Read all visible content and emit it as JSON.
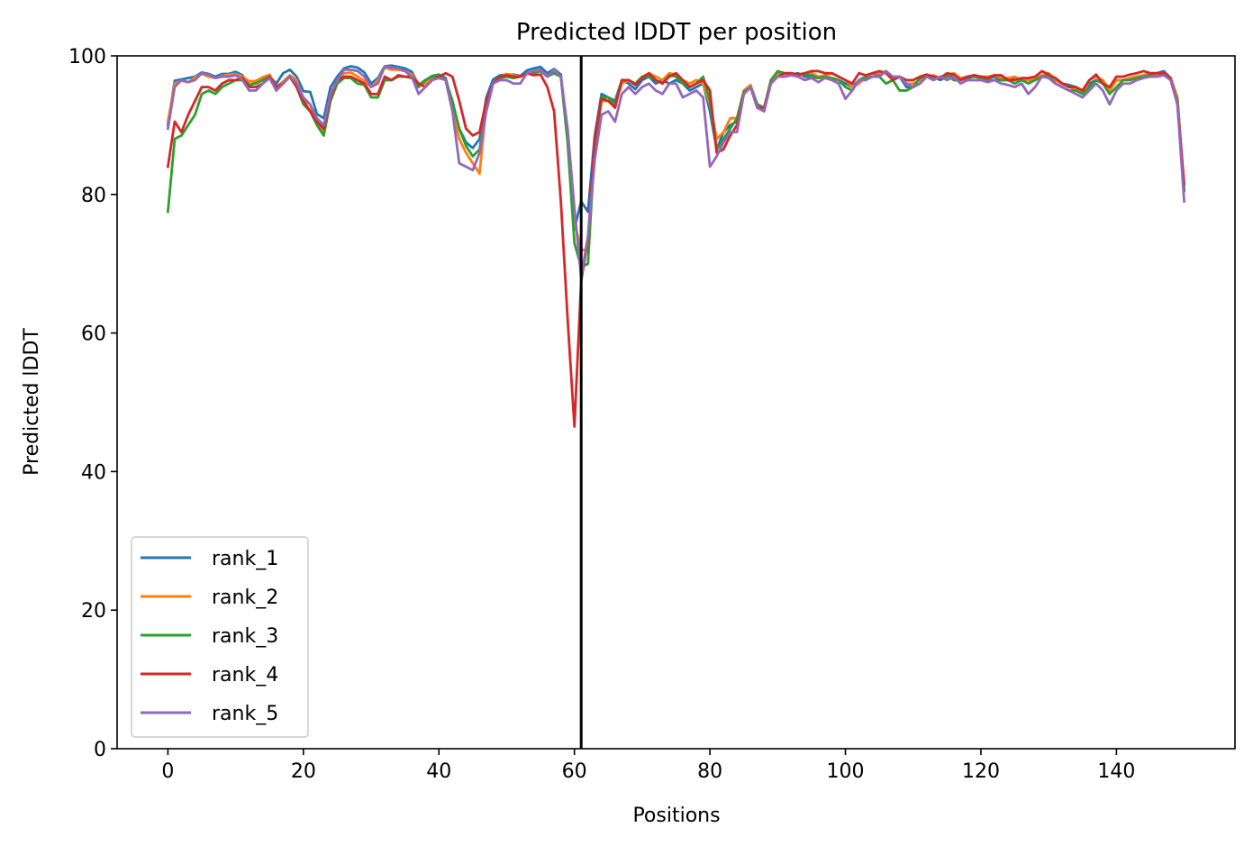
{
  "chart_data": {
    "type": "line",
    "title": "Predicted lDDT per position",
    "xlabel": "Positions",
    "ylabel": "Predicted lDDT",
    "xlim": [
      -7.5,
      157.5
    ],
    "ylim": [
      0,
      100
    ],
    "xticks": [
      0,
      20,
      40,
      60,
      80,
      100,
      120,
      140
    ],
    "yticks": [
      0,
      20,
      40,
      60,
      80,
      100
    ],
    "vline": 61,
    "grid": false,
    "legend_position": "lower-left",
    "x": [
      0,
      1,
      2,
      3,
      4,
      5,
      6,
      7,
      8,
      9,
      10,
      11,
      12,
      13,
      14,
      15,
      16,
      17,
      18,
      19,
      20,
      21,
      22,
      23,
      24,
      25,
      26,
      27,
      28,
      29,
      30,
      31,
      32,
      33,
      34,
      35,
      36,
      37,
      38,
      39,
      40,
      41,
      42,
      43,
      44,
      45,
      46,
      47,
      48,
      49,
      50,
      51,
      52,
      53,
      54,
      55,
      56,
      57,
      58,
      59,
      60,
      61,
      62,
      63,
      64,
      65,
      66,
      67,
      68,
      69,
      70,
      71,
      72,
      73,
      74,
      75,
      76,
      77,
      78,
      79,
      80,
      81,
      82,
      83,
      84,
      85,
      86,
      87,
      88,
      89,
      90,
      91,
      92,
      93,
      94,
      95,
      96,
      97,
      98,
      99,
      100,
      101,
      102,
      103,
      104,
      105,
      106,
      107,
      108,
      109,
      110,
      111,
      112,
      113,
      114,
      115,
      116,
      117,
      118,
      119,
      120,
      121,
      122,
      123,
      124,
      125,
      126,
      127,
      128,
      129,
      130,
      131,
      132,
      133,
      134,
      135,
      136,
      137,
      138,
      139,
      140,
      141,
      142,
      143,
      144,
      145,
      146,
      147,
      148,
      149,
      150
    ],
    "series": [
      {
        "name": "rank_1",
        "color": "#1f77b4",
        "values": [
          90.0,
          96.4,
          96.6,
          96.8,
          97.0,
          97.6,
          97.4,
          97.0,
          97.4,
          97.4,
          97.7,
          97.2,
          95.8,
          96.1,
          96.9,
          97.1,
          96.0,
          97.5,
          98.0,
          97.0,
          94.9,
          94.8,
          91.6,
          91.0,
          95.5,
          97.0,
          98.2,
          98.5,
          98.3,
          97.6,
          96.0,
          96.8,
          98.5,
          98.6,
          98.4,
          98.2,
          97.7,
          95.8,
          96.5,
          97.1,
          97.3,
          96.8,
          93.0,
          89.5,
          87.5,
          86.7,
          88.0,
          94.0,
          96.6,
          97.2,
          97.3,
          97.3,
          97.1,
          97.9,
          98.2,
          98.4,
          97.5,
          98.1,
          97.3,
          88.0,
          75.0,
          79.0,
          77.5,
          88.5,
          94.5,
          94.0,
          93.5,
          96.5,
          96.0,
          95.2,
          96.5,
          97.0,
          96.0,
          96.5,
          96.0,
          96.5,
          96.0,
          95.0,
          95.5,
          96.0,
          92.0,
          86.5,
          89.0,
          90.0,
          90.5,
          94.5,
          95.5,
          92.5,
          92.0,
          96.5,
          97.5,
          97.5,
          97.3,
          97.5,
          97.0,
          97.0,
          96.8,
          97.0,
          96.8,
          96.5,
          96.0,
          95.5,
          96.5,
          97.0,
          97.5,
          97.2,
          97.8,
          96.5,
          97.0,
          95.5,
          95.5,
          96.0,
          97.0,
          97.0,
          96.5,
          97.0,
          97.2,
          96.5,
          96.8,
          97.0,
          97.0,
          96.8,
          97.0,
          96.5,
          96.5,
          96.8,
          96.5,
          96.5,
          96.5,
          97.0,
          97.2,
          96.5,
          96.0,
          95.8,
          95.5,
          95.0,
          96.0,
          96.5,
          96.0,
          95.0,
          96.5,
          96.5,
          96.8,
          97.0,
          97.2,
          97.5,
          97.5,
          97.8,
          96.8,
          94.0,
          80.5
        ]
      },
      {
        "name": "rank_2",
        "color": "#ff7f0e",
        "values": [
          90.5,
          96.0,
          96.4,
          96.2,
          96.9,
          97.4,
          97.0,
          96.8,
          97.1,
          97.3,
          97.4,
          97.0,
          96.3,
          96.4,
          96.9,
          97.3,
          95.5,
          96.3,
          97.2,
          96.5,
          93.5,
          93.0,
          90.0,
          89.0,
          94.5,
          96.5,
          97.5,
          97.6,
          97.0,
          96.4,
          95.5,
          96.5,
          98.3,
          98.0,
          98.0,
          97.8,
          97.3,
          96.0,
          96.0,
          96.8,
          97.2,
          96.5,
          92.0,
          88.0,
          86.0,
          84.5,
          83.0,
          93.0,
          96.0,
          97.0,
          97.4,
          97.2,
          97.0,
          97.5,
          97.6,
          97.8,
          97.2,
          97.5,
          97.0,
          88.0,
          76.0,
          72.0,
          72.0,
          86.0,
          93.5,
          93.5,
          93.0,
          96.0,
          96.5,
          96.0,
          97.0,
          97.5,
          97.0,
          96.5,
          97.5,
          97.3,
          96.5,
          96.0,
          96.5,
          96.0,
          93.0,
          88.0,
          89.0,
          91.0,
          91.0,
          95.0,
          95.8,
          93.0,
          92.5,
          96.5,
          97.5,
          97.0,
          97.5,
          97.2,
          97.3,
          97.5,
          97.0,
          97.2,
          97.5,
          97.0,
          96.5,
          95.5,
          96.0,
          97.0,
          97.5,
          97.5,
          97.8,
          96.8,
          97.0,
          96.0,
          96.0,
          96.5,
          97.0,
          97.2,
          96.8,
          97.2,
          97.5,
          96.8,
          97.0,
          97.2,
          97.0,
          97.0,
          97.2,
          96.8,
          96.8,
          97.0,
          96.5,
          96.5,
          96.8,
          97.2,
          97.5,
          96.5,
          96.0,
          95.5,
          95.2,
          94.5,
          96.5,
          97.0,
          96.5,
          95.0,
          96.5,
          96.5,
          96.8,
          97.0,
          97.2,
          97.5,
          97.2,
          97.5,
          96.8,
          94.0,
          81.0
        ]
      },
      {
        "name": "rank_3",
        "color": "#2ca02c",
        "values": [
          77.5,
          88.0,
          88.5,
          90.0,
          91.5,
          94.5,
          95.0,
          94.5,
          95.5,
          96.0,
          96.5,
          96.5,
          95.8,
          96.0,
          96.5,
          97.0,
          95.0,
          96.0,
          97.0,
          95.5,
          93.0,
          92.0,
          90.0,
          88.5,
          93.5,
          96.0,
          96.8,
          96.8,
          96.0,
          95.8,
          94.0,
          94.0,
          96.5,
          96.5,
          97.0,
          97.0,
          96.8,
          95.5,
          96.5,
          97.0,
          97.3,
          96.5,
          93.5,
          89.5,
          87.0,
          85.5,
          86.5,
          93.0,
          96.0,
          96.8,
          97.0,
          96.8,
          97.0,
          97.5,
          97.5,
          97.8,
          97.0,
          97.5,
          97.0,
          87.5,
          73.0,
          69.5,
          70.0,
          87.0,
          94.0,
          94.0,
          93.0,
          96.5,
          96.5,
          96.0,
          97.0,
          97.0,
          96.5,
          96.0,
          97.2,
          97.0,
          96.0,
          95.5,
          96.0,
          97.0,
          93.5,
          86.5,
          88.0,
          89.5,
          91.0,
          94.8,
          95.5,
          93.0,
          92.5,
          96.5,
          97.8,
          97.5,
          97.5,
          97.3,
          97.3,
          97.2,
          96.8,
          97.0,
          96.8,
          96.5,
          95.5,
          95.0,
          96.5,
          96.8,
          97.0,
          97.0,
          96.0,
          96.5,
          95.0,
          95.0,
          95.5,
          96.8,
          97.0,
          96.5,
          97.0,
          97.2,
          96.5,
          96.5,
          97.0,
          97.0,
          96.8,
          96.5,
          96.5,
          96.5,
          96.5,
          96.0,
          96.5,
          96.0,
          96.5,
          97.0,
          97.2,
          96.0,
          95.5,
          95.0,
          95.0,
          94.5,
          95.5,
          96.5,
          96.0,
          94.5,
          95.5,
          96.5,
          96.5,
          96.8,
          97.0,
          97.2,
          97.0,
          97.3,
          96.5,
          93.5,
          80.5
        ]
      },
      {
        "name": "rank_4",
        "color": "#d62728",
        "values": [
          84.0,
          90.5,
          89.0,
          91.5,
          93.5,
          95.5,
          95.5,
          95.0,
          96.0,
          96.5,
          96.5,
          96.8,
          95.5,
          95.5,
          96.0,
          97.0,
          95.5,
          96.0,
          97.0,
          95.5,
          93.5,
          92.0,
          90.5,
          89.5,
          94.0,
          96.5,
          97.0,
          97.0,
          96.5,
          96.0,
          94.5,
          94.5,
          97.0,
          96.5,
          97.2,
          97.0,
          97.0,
          96.0,
          95.5,
          96.5,
          97.0,
          97.5,
          97.0,
          93.5,
          89.5,
          88.5,
          89.0,
          93.5,
          96.0,
          97.0,
          97.2,
          97.0,
          97.0,
          97.5,
          97.2,
          97.3,
          95.5,
          92.0,
          79.0,
          62.0,
          46.5,
          67.5,
          73.5,
          88.0,
          93.8,
          93.5,
          92.5,
          96.5,
          96.5,
          95.8,
          96.8,
          97.5,
          96.5,
          96.0,
          97.0,
          97.5,
          96.5,
          95.5,
          96.0,
          96.5,
          95.0,
          86.0,
          86.5,
          88.5,
          90.0,
          94.5,
          95.5,
          92.5,
          92.5,
          96.0,
          97.0,
          97.5,
          97.5,
          97.3,
          97.5,
          97.8,
          97.8,
          97.5,
          97.5,
          97.0,
          96.5,
          96.0,
          97.5,
          97.2,
          97.5,
          97.8,
          97.5,
          96.5,
          97.0,
          96.5,
          96.5,
          97.0,
          97.3,
          97.0,
          96.8,
          97.5,
          97.3,
          96.5,
          97.0,
          97.2,
          97.0,
          96.8,
          97.2,
          97.2,
          96.5,
          96.5,
          96.8,
          96.8,
          97.0,
          97.8,
          97.3,
          96.8,
          96.0,
          95.5,
          95.5,
          95.0,
          96.5,
          97.3,
          96.0,
          95.5,
          97.0,
          97.0,
          97.3,
          97.5,
          97.8,
          97.5,
          97.5,
          97.5,
          96.8,
          93.0,
          81.5
        ]
      },
      {
        "name": "rank_5",
        "color": "#9467bd",
        "values": [
          89.5,
          95.5,
          96.5,
          96.2,
          96.5,
          97.5,
          97.3,
          96.8,
          97.0,
          97.0,
          97.2,
          96.5,
          95.0,
          95.0,
          96.0,
          96.8,
          95.0,
          96.0,
          97.0,
          96.0,
          94.0,
          93.0,
          91.0,
          90.0,
          94.5,
          96.5,
          98.0,
          98.0,
          97.8,
          97.0,
          95.5,
          96.0,
          98.5,
          98.3,
          98.2,
          97.8,
          97.0,
          94.5,
          95.5,
          96.5,
          96.8,
          96.5,
          92.0,
          84.5,
          84.0,
          83.5,
          86.0,
          92.0,
          96.0,
          96.5,
          96.5,
          96.0,
          96.0,
          97.5,
          97.8,
          98.0,
          97.0,
          98.0,
          97.0,
          89.5,
          78.0,
          68.0,
          74.0,
          85.0,
          91.5,
          92.0,
          90.5,
          94.5,
          95.5,
          94.5,
          95.5,
          96.0,
          95.0,
          94.5,
          96.0,
          96.0,
          94.0,
          94.5,
          95.0,
          94.0,
          84.0,
          85.5,
          87.5,
          89.0,
          89.0,
          94.5,
          95.5,
          92.5,
          92.0,
          96.0,
          97.0,
          97.0,
          97.2,
          97.0,
          96.5,
          96.8,
          96.2,
          96.8,
          96.5,
          96.0,
          93.8,
          95.0,
          96.5,
          96.5,
          97.0,
          97.0,
          97.8,
          97.0,
          97.0,
          96.0,
          95.5,
          96.0,
          97.0,
          96.5,
          97.0,
          96.5,
          97.0,
          96.0,
          96.5,
          96.5,
          96.5,
          96.2,
          96.5,
          96.0,
          95.8,
          95.5,
          96.0,
          94.5,
          95.5,
          97.0,
          96.8,
          96.0,
          95.5,
          95.0,
          94.5,
          94.0,
          95.0,
          96.0,
          95.0,
          93.0,
          95.0,
          96.0,
          96.0,
          96.5,
          96.8,
          97.0,
          97.0,
          97.2,
          96.5,
          93.0,
          79.0
        ]
      }
    ]
  }
}
